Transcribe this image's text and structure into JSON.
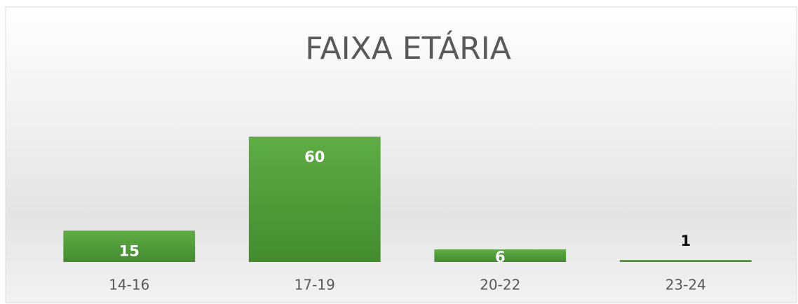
{
  "chart_data": {
    "type": "bar",
    "title": "FAIXA ETÁRIA",
    "categories": [
      "14-16",
      "17-19",
      "20-22",
      "23-24"
    ],
    "values": [
      15,
      60,
      6,
      1
    ],
    "color": "#4e9a38"
  }
}
